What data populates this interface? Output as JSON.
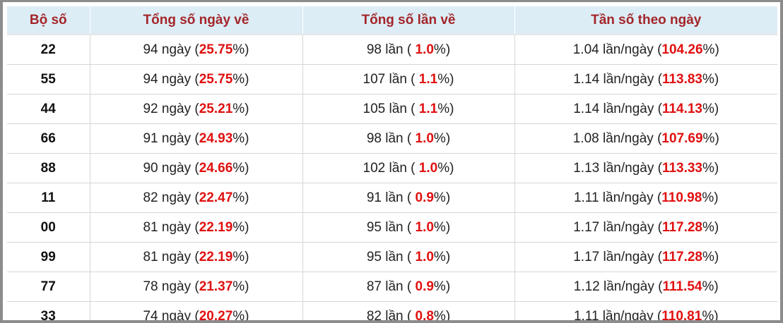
{
  "table": {
    "headers": [
      "Bộ số",
      "Tổng số ngày về",
      "Tổng số lần về",
      "Tần số theo ngày"
    ],
    "open": "(",
    "open_spaced": "( ",
    "close": "%)",
    "rows": [
      {
        "code": "22",
        "days": "94 ngày",
        "days_pct": "25.75",
        "times": "98 lần",
        "times_pct": "1.0",
        "freq": "1.04 lần/ngày",
        "freq_pct": "104.26"
      },
      {
        "code": "55",
        "days": "94 ngày",
        "days_pct": "25.75",
        "times": "107 lần",
        "times_pct": "1.1",
        "freq": "1.14 lần/ngày",
        "freq_pct": "113.83"
      },
      {
        "code": "44",
        "days": "92 ngày",
        "days_pct": "25.21",
        "times": "105 lần",
        "times_pct": "1.1",
        "freq": "1.14 lần/ngày",
        "freq_pct": "114.13"
      },
      {
        "code": "66",
        "days": "91 ngày",
        "days_pct": "24.93",
        "times": "98 lần",
        "times_pct": "1.0",
        "freq": "1.08 lần/ngày",
        "freq_pct": "107.69"
      },
      {
        "code": "88",
        "days": "90 ngày",
        "days_pct": "24.66",
        "times": "102 lần",
        "times_pct": "1.0",
        "freq": "1.13 lần/ngày",
        "freq_pct": "113.33"
      },
      {
        "code": "11",
        "days": "82 ngày",
        "days_pct": "22.47",
        "times": "91 lần",
        "times_pct": "0.9",
        "freq": "1.11 lần/ngày",
        "freq_pct": "110.98"
      },
      {
        "code": "00",
        "days": "81 ngày",
        "days_pct": "22.19",
        "times": "95 lần",
        "times_pct": "1.0",
        "freq": "1.17 lần/ngày",
        "freq_pct": "117.28"
      },
      {
        "code": "99",
        "days": "81 ngày",
        "days_pct": "22.19",
        "times": "95 lần",
        "times_pct": "1.0",
        "freq": "1.17 lần/ngày",
        "freq_pct": "117.28"
      },
      {
        "code": "77",
        "days": "78 ngày",
        "days_pct": "21.37",
        "times": "87 lần",
        "times_pct": "0.9",
        "freq": "1.12 lần/ngày",
        "freq_pct": "111.54"
      },
      {
        "code": "33",
        "days": "74 ngày",
        "days_pct": "20.27",
        "times": "82 lần",
        "times_pct": "0.8",
        "freq": "1.11 lần/ngày",
        "freq_pct": "110.81"
      }
    ]
  }
}
